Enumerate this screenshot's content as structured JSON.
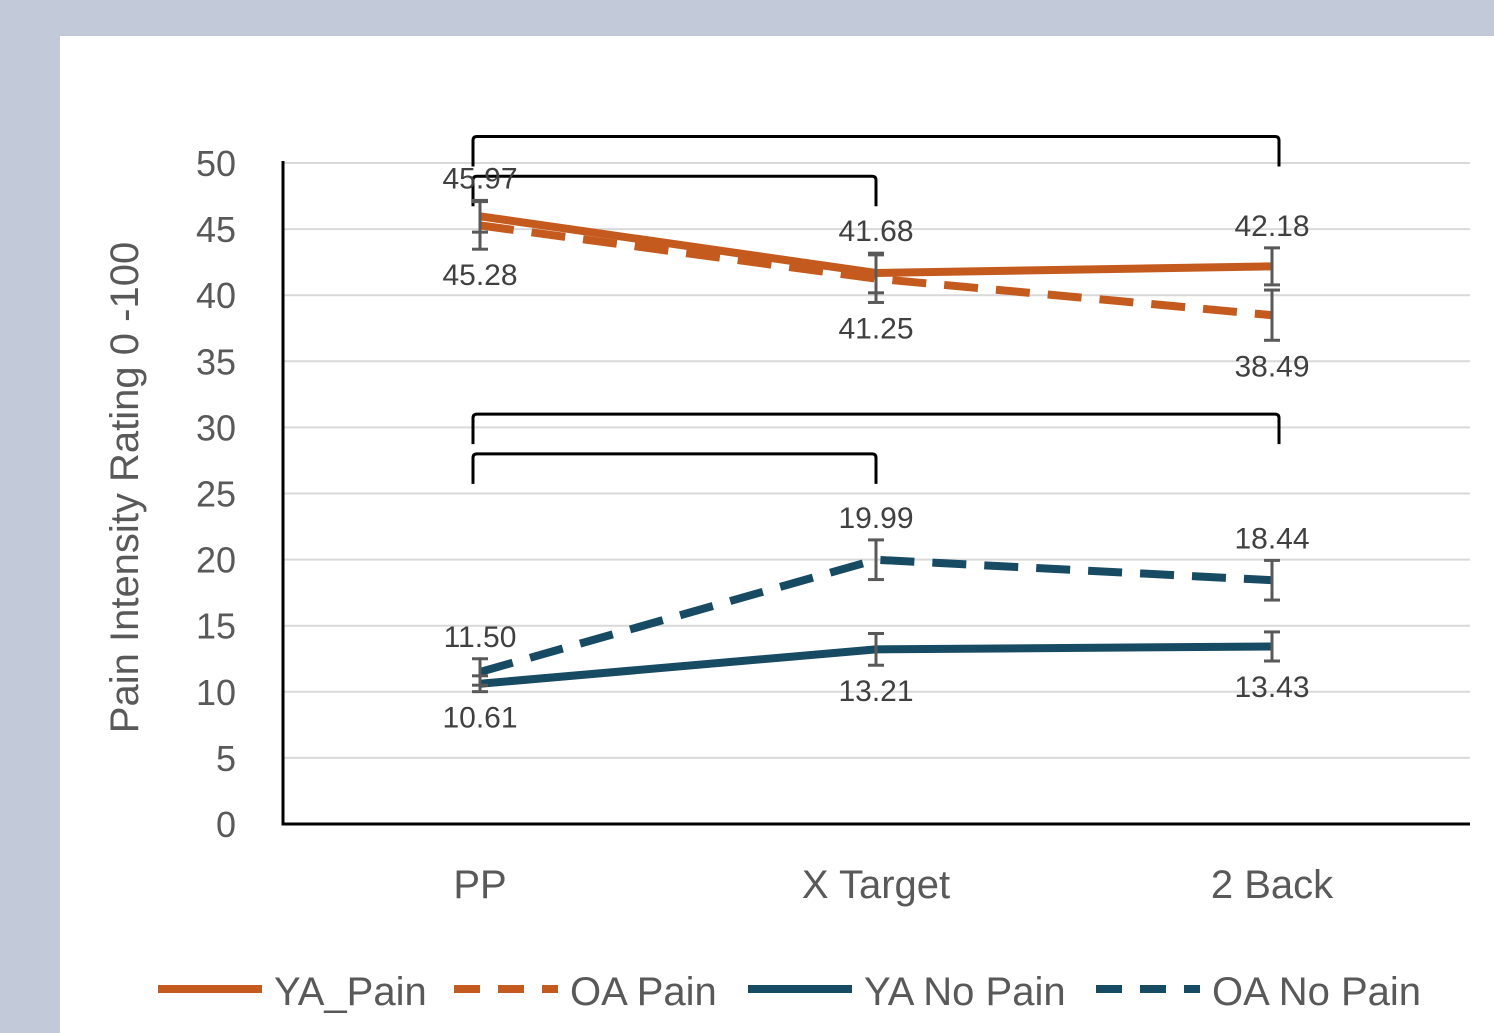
{
  "chart_data": {
    "type": "line",
    "title": "",
    "xlabel": "",
    "ylabel": "Pain Intensity Rating 0 -100",
    "categories": [
      "PP",
      "X Target",
      "2 Back"
    ],
    "ylim": [
      0,
      50
    ],
    "yticks": [
      0,
      5,
      10,
      15,
      20,
      25,
      30,
      35,
      40,
      45,
      50
    ],
    "grid": true,
    "legend_position": "bottom",
    "series": [
      {
        "name": "YA_Pain",
        "values": [
          45.97,
          41.68,
          42.18
        ],
        "labels": [
          "45.97",
          "41.68",
          "42.18"
        ],
        "label_side": [
          "above",
          "above",
          "above"
        ],
        "error": [
          1.2,
          1.5,
          1.4
        ],
        "color": "#c55a1e",
        "dashed": false
      },
      {
        "name": "OA Pain",
        "values": [
          45.28,
          41.25,
          38.49
        ],
        "labels": [
          "45.28",
          "41.25",
          "38.49"
        ],
        "label_side": [
          "below",
          "below",
          "below"
        ],
        "error": [
          1.8,
          1.8,
          1.9
        ],
        "color": "#c55a1e",
        "dashed": true
      },
      {
        "name": "YA No Pain",
        "values": [
          10.61,
          13.21,
          13.43
        ],
        "labels": [
          "10.61",
          "13.21",
          "13.43"
        ],
        "label_side": [
          "below",
          "below",
          "below"
        ],
        "error": [
          0.6,
          1.2,
          1.1
        ],
        "color": "#174a63",
        "dashed": false
      },
      {
        "name": "OA No Pain",
        "values": [
          11.5,
          19.99,
          18.44
        ],
        "labels": [
          "11.50",
          "19.99",
          "18.44"
        ],
        "label_side": [
          "above",
          "above",
          "above"
        ],
        "error": [
          1.0,
          1.5,
          1.5
        ],
        "color": "#174a63",
        "dashed": true
      }
    ],
    "significance_brackets": [
      {
        "from": 0,
        "to": 2,
        "value": 52.0
      },
      {
        "from": 0,
        "to": 1,
        "value": 49.0
      },
      {
        "from": 0,
        "to": 2,
        "value": 31.0
      },
      {
        "from": 0,
        "to": 1,
        "value": 28.0
      }
    ]
  }
}
